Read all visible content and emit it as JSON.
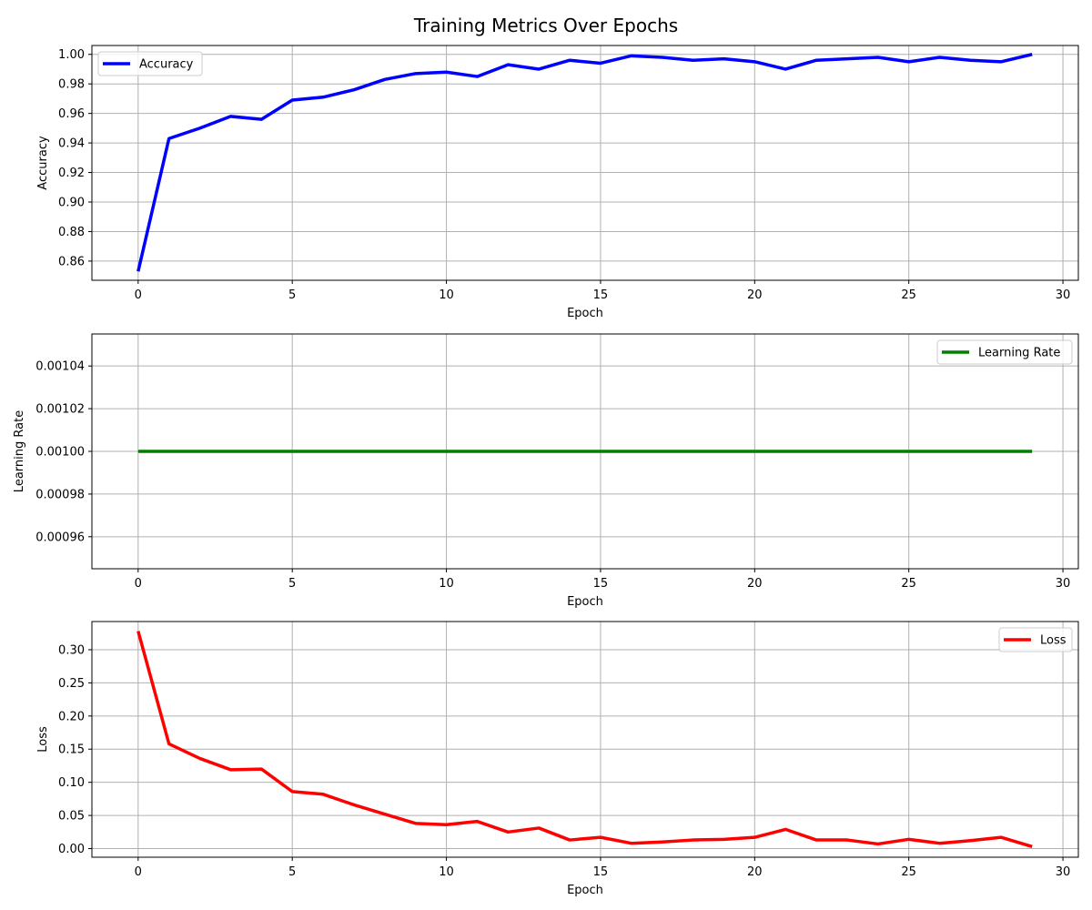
{
  "figure": {
    "title": "Training Metrics Over Epochs"
  },
  "chart_data": [
    {
      "type": "line",
      "title": "",
      "xlabel": "Epoch",
      "ylabel": "Accuracy",
      "xlim": [
        -1.5,
        30.5
      ],
      "ylim": [
        0.847,
        1.006
      ],
      "xticks": [
        0,
        5,
        10,
        15,
        20,
        25,
        30
      ],
      "yticks": [
        0.86,
        0.88,
        0.9,
        0.92,
        0.94,
        0.96,
        0.98,
        1.0
      ],
      "ytick_labels": [
        "0.86",
        "0.88",
        "0.90",
        "0.92",
        "0.94",
        "0.96",
        "0.98",
        "1.00"
      ],
      "grid": true,
      "legend_position": "upper-left",
      "x": [
        0,
        1,
        2,
        3,
        4,
        5,
        6,
        7,
        8,
        9,
        10,
        11,
        12,
        13,
        14,
        15,
        16,
        17,
        18,
        19,
        20,
        21,
        22,
        23,
        24,
        25,
        26,
        27,
        28,
        29
      ],
      "series": [
        {
          "name": "Accuracy",
          "color": "#0000ff",
          "values": [
            0.853,
            0.943,
            0.95,
            0.958,
            0.956,
            0.969,
            0.971,
            0.976,
            0.983,
            0.987,
            0.988,
            0.985,
            0.993,
            0.99,
            0.996,
            0.994,
            0.999,
            0.998,
            0.996,
            0.997,
            0.995,
            0.99,
            0.996,
            0.997,
            0.998,
            0.995,
            0.998,
            0.996,
            0.995,
            1.0
          ]
        }
      ]
    },
    {
      "type": "line",
      "title": "",
      "xlabel": "Epoch",
      "ylabel": "Learning Rate",
      "xlim": [
        -1.5,
        30.5
      ],
      "ylim": [
        0.000945,
        0.001055
      ],
      "xticks": [
        0,
        5,
        10,
        15,
        20,
        25,
        30
      ],
      "yticks": [
        0.00096,
        0.00098,
        0.001,
        0.00102,
        0.00104
      ],
      "ytick_labels": [
        "0.00096",
        "0.00098",
        "0.00100",
        "0.00102",
        "0.00104"
      ],
      "grid": true,
      "legend_position": "upper-right",
      "x": [
        0,
        1,
        2,
        3,
        4,
        5,
        6,
        7,
        8,
        9,
        10,
        11,
        12,
        13,
        14,
        15,
        16,
        17,
        18,
        19,
        20,
        21,
        22,
        23,
        24,
        25,
        26,
        27,
        28,
        29
      ],
      "series": [
        {
          "name": "Learning Rate",
          "color": "#008000",
          "values": [
            0.001,
            0.001,
            0.001,
            0.001,
            0.001,
            0.001,
            0.001,
            0.001,
            0.001,
            0.001,
            0.001,
            0.001,
            0.001,
            0.001,
            0.001,
            0.001,
            0.001,
            0.001,
            0.001,
            0.001,
            0.001,
            0.001,
            0.001,
            0.001,
            0.001,
            0.001,
            0.001,
            0.001,
            0.001,
            0.001
          ]
        }
      ]
    },
    {
      "type": "line",
      "title": "",
      "xlabel": "Epoch",
      "ylabel": "Loss",
      "xlim": [
        -1.5,
        30.5
      ],
      "ylim": [
        -0.013,
        0.3425
      ],
      "xticks": [
        0,
        5,
        10,
        15,
        20,
        25,
        30
      ],
      "yticks": [
        0.0,
        0.05,
        0.1,
        0.15,
        0.2,
        0.25,
        0.3
      ],
      "ytick_labels": [
        "0.00",
        "0.05",
        "0.10",
        "0.15",
        "0.20",
        "0.25",
        "0.30"
      ],
      "grid": true,
      "legend_position": "upper-right",
      "x": [
        0,
        1,
        2,
        3,
        4,
        5,
        6,
        7,
        8,
        9,
        10,
        11,
        12,
        13,
        14,
        15,
        16,
        17,
        18,
        19,
        20,
        21,
        22,
        23,
        24,
        25,
        26,
        27,
        28,
        29
      ],
      "series": [
        {
          "name": "Loss",
          "color": "#ff0000",
          "values": [
            0.328,
            0.158,
            0.136,
            0.119,
            0.12,
            0.086,
            0.082,
            0.066,
            0.052,
            0.038,
            0.036,
            0.041,
            0.025,
            0.031,
            0.013,
            0.017,
            0.008,
            0.01,
            0.013,
            0.014,
            0.017,
            0.029,
            0.013,
            0.013,
            0.007,
            0.014,
            0.008,
            0.012,
            0.017,
            0.003
          ]
        }
      ]
    }
  ]
}
